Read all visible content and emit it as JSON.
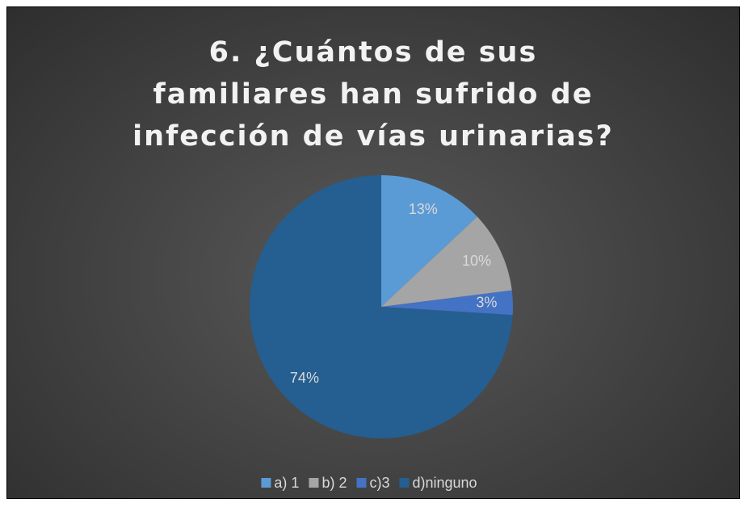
{
  "chart_data": {
    "type": "pie",
    "title": "6. ¿Cuántos de sus familiares han sufrido de infección de vías urinarias?",
    "categories": [
      "a) 1",
      "b) 2",
      "c)3",
      "d)ninguno"
    ],
    "values": [
      13,
      10,
      3,
      74
    ],
    "value_labels": [
      "13%",
      "10%",
      "3%",
      "74%"
    ],
    "colors": [
      "#5b9bd5",
      "#a5a5a5",
      "#4472c4",
      "#255e91"
    ],
    "legend": "bottom"
  }
}
